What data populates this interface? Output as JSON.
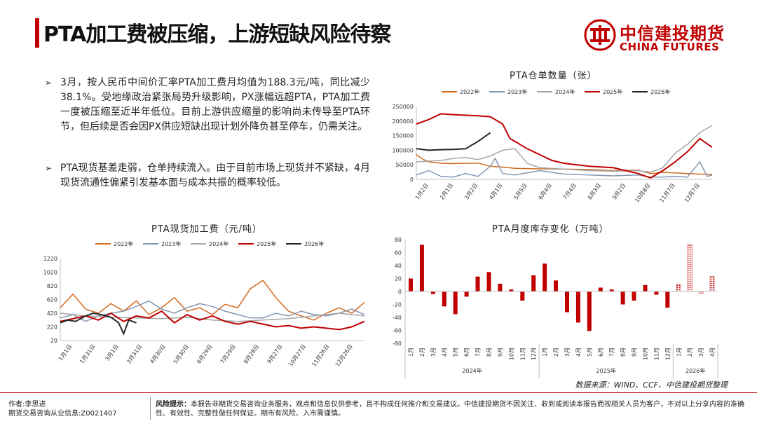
{
  "page": {
    "title": "PTA加工费被压缩，上游短缺风险待察",
    "logo_cn": "中信建投期货",
    "logo_en": "CHINA FUTURES",
    "bullets": [
      {
        "mark": "➢",
        "text": "3月，按人民币中间价汇率PTA加工费月均值为188.3元/吨，同比减少38.1%。受地缘政治紧张局势升级影响，PX涨幅远超PTA，PTA加工费一度被压缩至近半年低位。目前上游供应缩量的影响尚未传导至PTA环节，但后续是否会因PX供应短缺出现计划外降负甚至停车，仍需关注。"
      },
      {
        "mark": "➢",
        "text": "PTA现货基差走弱，仓单持续流入。由于目前市场上现货并不紧缺，4月现货流通性偏紧引发基本面与成本共振的概率较低。"
      }
    ],
    "source": "数据来源：WIND、CCF、中信建投期货整理",
    "author_line1": "作者:李思进",
    "author_line2": "期货交易咨询从业信息:Z0021407",
    "risk_label": "风险提示：",
    "risk_text": "本报告非期货交易咨询业务服务，观点和信息仅供参考，且不构成任何推介和交易建议。中信建投期货不因关注、收到或阅读本报告而视相关人员为客户，不对以上分享内容的准确性、有效性、完整性做任何保证。期市有风险、入市需谨慎。"
  },
  "chart_data": [
    {
      "type": "line",
      "title": "PTA仓单数量（张）",
      "x_labels": [
        "1月2日",
        "2月1日",
        "3月2日",
        "4月1日",
        "5月5日",
        "6月4日",
        "7月4日",
        "8月3日",
        "9月2日",
        "10月8日",
        "11月7日",
        "12月7日"
      ],
      "ylim": [
        0,
        250000
      ],
      "y_ticks": [
        0,
        50000,
        100000,
        150000,
        200000,
        250000
      ],
      "y_tick_labels": [
        "0",
        "50000",
        "100000",
        "150000",
        "200000",
        "250000"
      ],
      "series": [
        {
          "name": "2022年",
          "color": "#d46a1e",
          "x": [
            0,
            0.25,
            0.5,
            0.75,
            1,
            1.5,
            2,
            2.5,
            3,
            3.5,
            4,
            5,
            6,
            7,
            8,
            9,
            9.5,
            10,
            10.5,
            11,
            11.5,
            12
          ],
          "values": [
            85000,
            70000,
            60000,
            58000,
            55000,
            54000,
            55000,
            56000,
            45000,
            42000,
            38000,
            36000,
            35000,
            34000,
            30000,
            32000,
            20000,
            24000,
            22000,
            20000,
            18000,
            17000
          ]
        },
        {
          "name": "2023年",
          "color": "#8497b0",
          "x": [
            0,
            0.5,
            1,
            1.5,
            2,
            2.5,
            3,
            3.2,
            3.5,
            4,
            5,
            6,
            7,
            8,
            9,
            9.5,
            10,
            10.5,
            11,
            11.5,
            11.8,
            12
          ],
          "values": [
            15000,
            30000,
            10000,
            8000,
            20000,
            10000,
            45000,
            72000,
            20000,
            15000,
            30000,
            18000,
            15000,
            12000,
            15000,
            8000,
            8000,
            10000,
            8000,
            60000,
            10000,
            15000
          ]
        },
        {
          "name": "2024年",
          "color": "#a6a6a6",
          "x": [
            0,
            1,
            1.5,
            2,
            2.5,
            3,
            3.5,
            4,
            4.5,
            5,
            6,
            7,
            8,
            9,
            9.5,
            10,
            10.5,
            11,
            11.5,
            12
          ],
          "values": [
            60000,
            65000,
            72000,
            75000,
            68000,
            80000,
            100000,
            105000,
            55000,
            40000,
            35000,
            30000,
            28000,
            30000,
            25000,
            40000,
            90000,
            120000,
            160000,
            185000
          ]
        },
        {
          "name": "2025年",
          "color": "#c00000",
          "x": [
            0,
            0.5,
            1,
            1.5,
            2,
            2.5,
            3,
            3.5,
            3.8,
            4,
            4.5,
            5,
            5.5,
            6,
            7,
            8,
            9,
            9.5,
            10,
            10.5,
            11,
            11.5,
            12
          ],
          "values": [
            190000,
            205000,
            225000,
            222000,
            220000,
            218000,
            215000,
            190000,
            140000,
            130000,
            105000,
            85000,
            65000,
            55000,
            45000,
            40000,
            20000,
            5000,
            30000,
            60000,
            95000,
            140000,
            110000
          ]
        },
        {
          "name": "2026年",
          "color": "#262626",
          "x": [
            0,
            0.5,
            1,
            1.5,
            2,
            2.5,
            3
          ],
          "values": [
            105000,
            100000,
            102000,
            103000,
            105000,
            130000,
            160000
          ]
        }
      ]
    },
    {
      "type": "line",
      "title": "PTA现货加工费（元/吨）",
      "x_labels": [
        "1月1日",
        "1月31日",
        "3月1日",
        "3月31日",
        "4月30日",
        "5月30日",
        "6月29日",
        "7月29日",
        "8月28日",
        "9月27日",
        "10月27日",
        "11月26日",
        "12月26日"
      ],
      "ylim": [
        20,
        1220
      ],
      "y_ticks": [
        20,
        220,
        420,
        620,
        820,
        1020,
        1220
      ],
      "y_tick_labels": [
        "20",
        "220",
        "420",
        "620",
        "820",
        "1020",
        "1220"
      ],
      "series": [
        {
          "name": "2022年",
          "color": "#d46a1e",
          "x": [
            0,
            0.5,
            1,
            1.5,
            2,
            2.5,
            3,
            3.5,
            4,
            4.5,
            5,
            5.5,
            6,
            6.5,
            7,
            7.5,
            8,
            8.5,
            9,
            9.5,
            10,
            10.5,
            11,
            11.5,
            12
          ],
          "values": [
            500,
            700,
            480,
            420,
            560,
            450,
            600,
            400,
            500,
            650,
            450,
            500,
            400,
            550,
            500,
            780,
            900,
            650,
            450,
            380,
            320,
            420,
            500,
            420,
            580
          ]
        },
        {
          "name": "2023年",
          "color": "#8497b0",
          "x": [
            0,
            0.5,
            1,
            1.5,
            2,
            2.5,
            3,
            3.5,
            4,
            4.5,
            5,
            5.5,
            6,
            6.5,
            7,
            7.5,
            8,
            8.5,
            9,
            9.5,
            10,
            10.5,
            11,
            11.5,
            12
          ],
          "values": [
            350,
            400,
            300,
            380,
            420,
            450,
            520,
            600,
            480,
            420,
            500,
            560,
            520,
            450,
            400,
            350,
            350,
            420,
            380,
            450,
            400,
            380,
            420,
            480,
            400
          ]
        },
        {
          "name": "2024年",
          "color": "#a6a6a6",
          "x": [
            0,
            1,
            2,
            3,
            4,
            5,
            6,
            7,
            8,
            9,
            10,
            11,
            12
          ],
          "values": [
            420,
            380,
            360,
            350,
            340,
            360,
            320,
            300,
            320,
            340,
            380,
            420,
            380
          ]
        },
        {
          "name": "2025年",
          "color": "#c00000",
          "x": [
            0,
            0.5,
            1,
            1.5,
            2,
            2.5,
            3,
            3.5,
            4,
            4.5,
            5,
            5.5,
            6,
            6.5,
            7,
            7.5,
            8,
            8.5,
            9,
            9.5,
            10,
            10.5,
            11,
            11.5,
            12
          ],
          "values": [
            300,
            340,
            380,
            320,
            420,
            300,
            380,
            350,
            450,
            280,
            400,
            320,
            380,
            300,
            260,
            300,
            260,
            220,
            240,
            200,
            220,
            200,
            180,
            220,
            300
          ]
        },
        {
          "name": "2026年",
          "color": "#262626",
          "x": [
            0,
            0.3,
            0.6,
            1,
            1.3,
            1.6,
            2,
            2.3,
            2.5,
            2.7,
            3
          ],
          "values": [
            280,
            320,
            300,
            380,
            420,
            400,
            360,
            280,
            120,
            320,
            280
          ]
        }
      ]
    },
    {
      "type": "bar",
      "title": "PTA月度库存变化（万吨）",
      "categories": [
        "1月",
        "2月",
        "3月",
        "4月",
        "5月",
        "6月",
        "7月",
        "8月",
        "9月",
        "10月",
        "11月",
        "12月",
        "1月",
        "2月",
        "3月",
        "4月",
        "5月",
        "6月",
        "7月",
        "8月",
        "9月",
        "10月",
        "11月",
        "12月",
        "1月",
        "2月",
        "3月",
        "4月"
      ],
      "groups": [
        {
          "label": "2024年",
          "count": 12
        },
        {
          "label": "2025年",
          "count": 12
        },
        {
          "label": "2026年",
          "count": 4
        }
      ],
      "values": [
        20,
        72,
        -4,
        -23,
        -35,
        -8,
        23,
        30,
        12,
        3,
        -14,
        25,
        43,
        17,
        -32,
        -48,
        -61,
        6,
        3,
        -20,
        -14,
        10,
        -5,
        -25,
        11,
        72,
        -3,
        23
      ],
      "estimated_from_index": 24,
      "color": "#c00000",
      "ylim": [
        -80,
        80
      ],
      "y_ticks": [
        -80,
        -60,
        -40,
        -20,
        0,
        20,
        40,
        60,
        80
      ],
      "y_tick_labels": [
        "-80",
        "-60",
        "-40",
        "-20",
        "0",
        "20",
        "40",
        "60",
        "80"
      ]
    }
  ]
}
